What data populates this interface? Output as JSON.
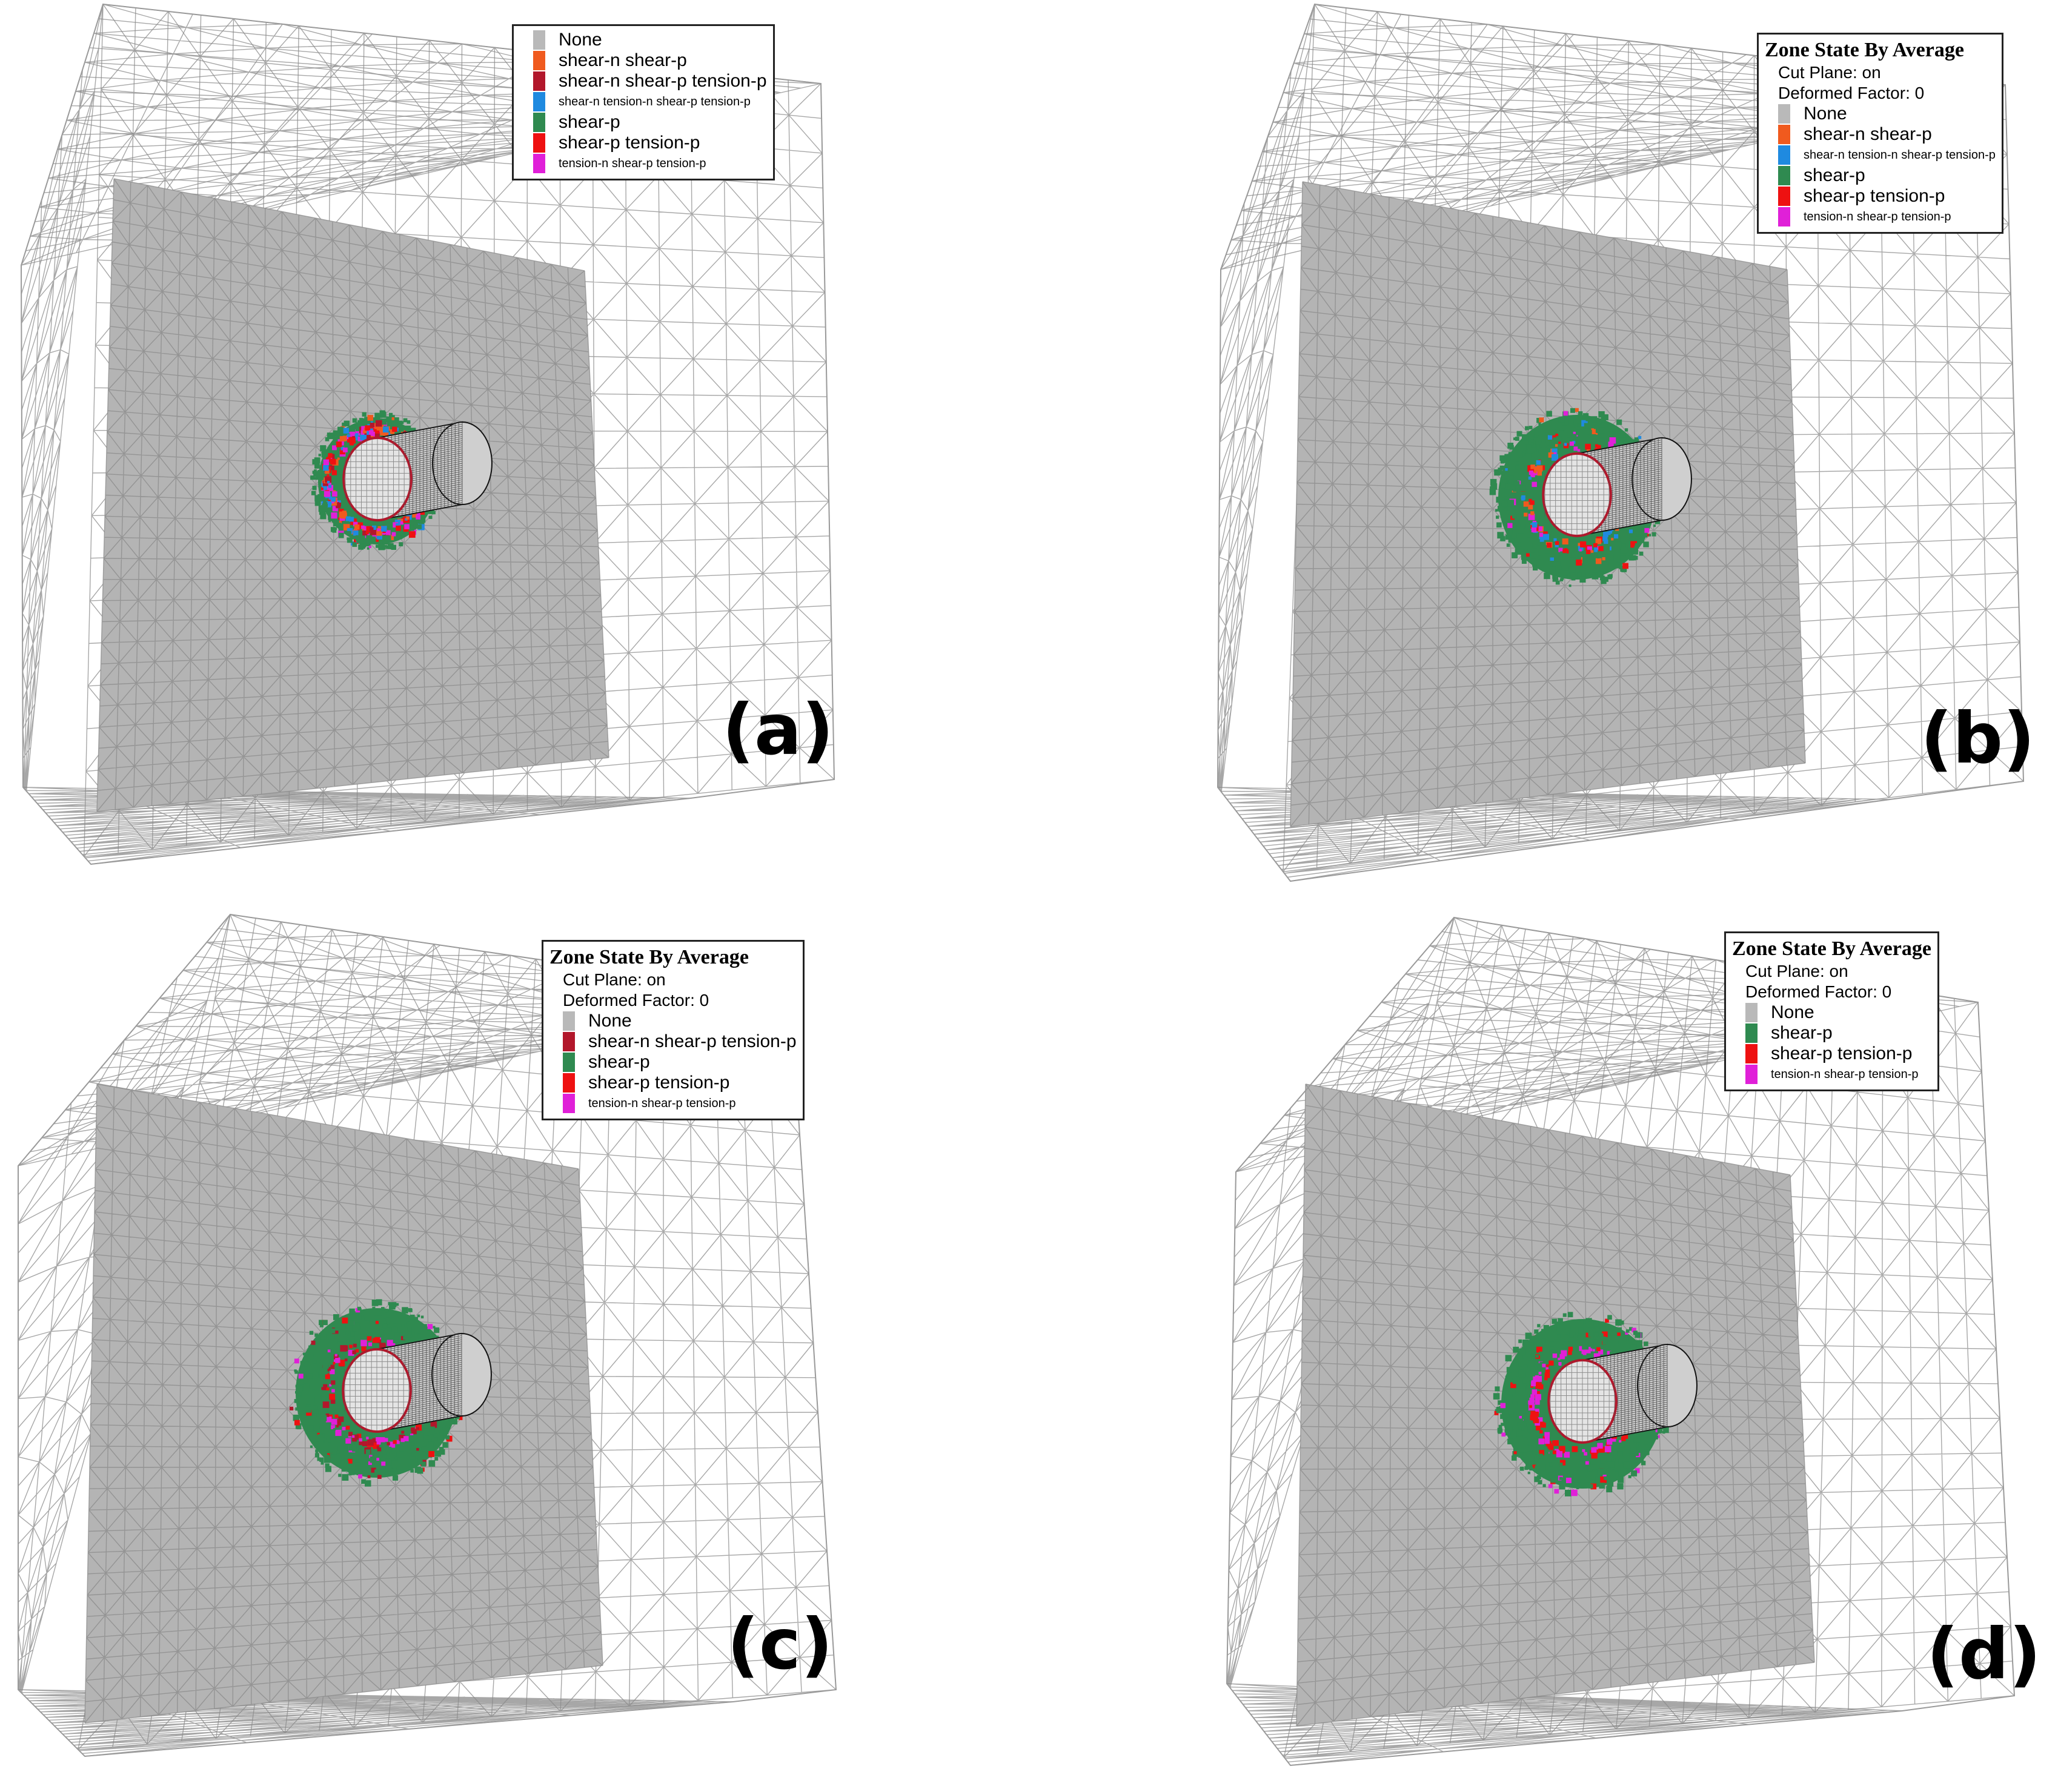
{
  "colors": {
    "None": "#b9b9b9",
    "shear-n shear-p": "#f05a1e",
    "shear-n shear-p tension-p": "#b2172b",
    "shear-n tension-n shear-p tension-p": "#1f8ae0",
    "shear-p": "#2f8a50",
    "shear-p tension-p": "#ee1111",
    "tension-n shear-p tension-p": "#e020d8",
    "cut_plane": "#b4b4b4",
    "mesh": "#8a8a8a"
  },
  "panels": [
    {
      "label": "(a)",
      "legend": {
        "title": "",
        "meta": [],
        "items": [
          {
            "name": "None",
            "small": false
          },
          {
            "name": "shear-n shear-p",
            "small": false
          },
          {
            "name": "shear-n shear-p tension-p",
            "small": false
          },
          {
            "name": "shear-n tension-n shear-p tension-p",
            "small": true
          },
          {
            "name": "shear-p",
            "small": false
          },
          {
            "name": "shear-p tension-p",
            "small": false
          },
          {
            "name": "tension-n shear-p tension-p",
            "small": true
          }
        ]
      }
    },
    {
      "label": "(b)",
      "legend": {
        "title": "Zone State By Average",
        "meta": [
          "Cut Plane: on",
          "Deformed Factor: 0"
        ],
        "items": [
          {
            "name": "None",
            "small": false
          },
          {
            "name": "shear-n shear-p",
            "small": false
          },
          {
            "name": "shear-n tension-n shear-p tension-p",
            "small": true
          },
          {
            "name": "shear-p",
            "small": false
          },
          {
            "name": "shear-p tension-p",
            "small": false
          },
          {
            "name": "tension-n shear-p tension-p",
            "small": true
          }
        ]
      }
    },
    {
      "label": "(c)",
      "legend": {
        "title": "Zone State By Average",
        "meta": [
          "Cut Plane: on",
          "Deformed Factor: 0"
        ],
        "items": [
          {
            "name": "None",
            "small": false
          },
          {
            "name": "shear-n shear-p tension-p",
            "small": false
          },
          {
            "name": "shear-p",
            "small": false
          },
          {
            "name": "shear-p tension-p",
            "small": false
          },
          {
            "name": "tension-n shear-p tension-p",
            "small": true
          }
        ]
      }
    },
    {
      "label": "(d)",
      "legend": {
        "title": "Zone State By Average",
        "meta": [
          "Cut Plane: on",
          "Deformed Factor: 0"
        ],
        "items": [
          {
            "name": "None",
            "small": false
          },
          {
            "name": "shear-p",
            "small": false
          },
          {
            "name": "shear-p tension-p",
            "small": false
          },
          {
            "name": "tension-n shear-p tension-p",
            "small": true
          }
        ]
      }
    }
  ]
}
